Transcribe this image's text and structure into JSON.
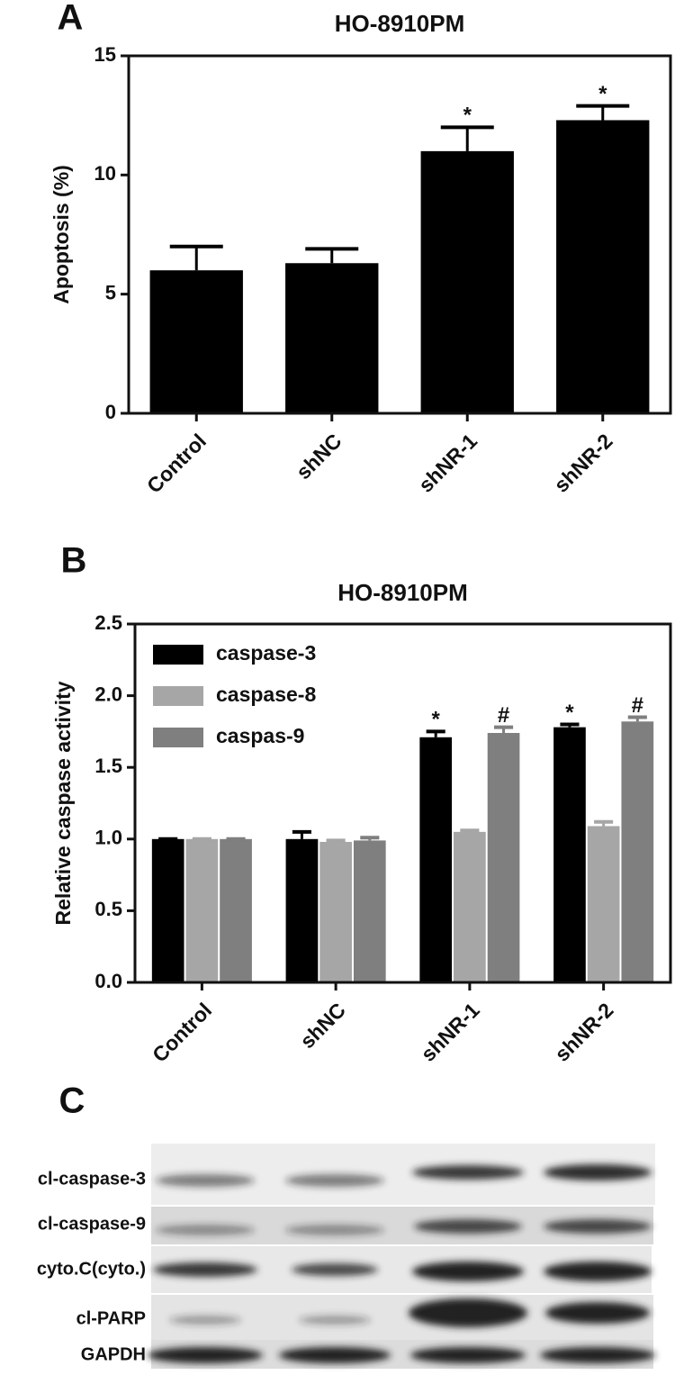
{
  "chart_data": [
    {
      "type": "bar",
      "panel": "A",
      "title": "HO-8910PM",
      "y_label": "Apoptosis (%)",
      "categories": [
        "Control",
        "shNC",
        "shNR-1",
        "shNR-2"
      ],
      "values": [
        6.0,
        6.3,
        11.0,
        12.3
      ],
      "errors": [
        1.0,
        0.6,
        1.0,
        0.6
      ],
      "markers": [
        null,
        null,
        "*",
        "*"
      ],
      "color": "#000000",
      "ylim": [
        0,
        15
      ],
      "yticks": [
        0,
        5,
        10,
        15
      ]
    },
    {
      "type": "bar",
      "panel": "B",
      "title": "HO-8910PM",
      "y_label": "Relative caspase activity",
      "categories": [
        "Control",
        "shNC",
        "shNR-1",
        "shNR-2"
      ],
      "series": [
        {
          "name": "caspase-3",
          "color": "#000000",
          "values": [
            1.0,
            1.0,
            1.71,
            1.78
          ],
          "errors": [
            0,
            0.05,
            0.04,
            0.02
          ],
          "markers": [
            null,
            null,
            "*",
            "*"
          ]
        },
        {
          "name": "caspase-8",
          "color": "#a6a6a6",
          "values": [
            1.0,
            0.98,
            1.05,
            1.09
          ],
          "errors": [
            0,
            0.01,
            0.01,
            0.03
          ]
        },
        {
          "name": "caspas-9",
          "color": "#7f7f7f",
          "values": [
            1.0,
            0.99,
            1.74,
            1.82
          ],
          "errors": [
            0,
            0.02,
            0.04,
            0.03
          ],
          "markers": [
            null,
            null,
            "#",
            "#"
          ]
        }
      ],
      "ylim": [
        0,
        2.5
      ],
      "yticks": [
        {
          "value": 0,
          "label": "0.0"
        },
        0.5,
        {
          "value": 1,
          "label": "1.0"
        },
        1.5,
        {
          "value": 2,
          "label": "2.0"
        },
        2.5
      ],
      "legend": "upper left"
    }
  ],
  "blot": {
    "panel": "C",
    "rows": [
      "cl-caspase-3",
      "cl-caspase-9",
      "cyto.C(cyto.)",
      "cl-PARP",
      "GAPDH"
    ]
  }
}
